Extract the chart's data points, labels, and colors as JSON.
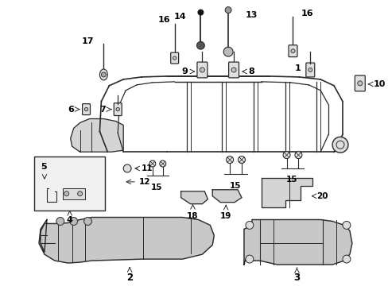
{
  "background_color": "#ffffff",
  "fig_width": 4.89,
  "fig_height": 3.6,
  "dpi": 100,
  "image_b64": ""
}
